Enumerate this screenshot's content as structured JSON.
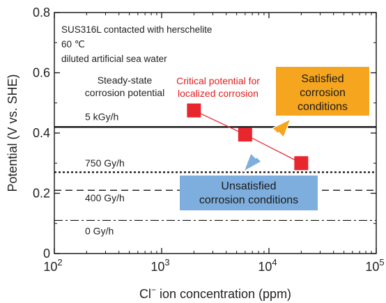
{
  "chart_data": {
    "type": "scatter",
    "xscale": "log",
    "xlim": [
      100,
      100000
    ],
    "ylim": [
      0,
      0.8
    ],
    "xticks": [
      {
        "value": 100,
        "base": "10",
        "exp": "2"
      },
      {
        "value": 1000,
        "base": "10",
        "exp": "3"
      },
      {
        "value": 10000,
        "base": "10",
        "exp": "4"
      },
      {
        "value": 100000,
        "base": "10",
        "exp": "5"
      }
    ],
    "yticks": [
      {
        "value": 0,
        "label": "0"
      },
      {
        "value": 0.2,
        "label": "0.2"
      },
      {
        "value": 0.4,
        "label": "0.4"
      },
      {
        "value": 0.6,
        "label": "0.6"
      },
      {
        "value": 0.8,
        "label": "0.8"
      }
    ],
    "xlabel_pre": "Cl",
    "xlabel_sup": "−",
    "xlabel_post": " ion concentration (ppm)",
    "ylabel": "Potential (V vs. SHE)",
    "info_lines": [
      "SUS316L contacted with herschelite",
      "60 ℃",
      "diluted artificial sea water"
    ],
    "steady_state_label": [
      "Steady-state",
      "corrosion potential"
    ],
    "critical_label": [
      "Critical potential for",
      "localized corrosion"
    ],
    "reference_lines": [
      {
        "label": "5 kGy/h",
        "y": 0.42,
        "style": "solid"
      },
      {
        "label": "750 Gy/h",
        "y": 0.27,
        "style": "dotted"
      },
      {
        "label": "400 Gy/h",
        "y": 0.21,
        "style": "dashed"
      },
      {
        "label": "0 Gy/h",
        "y": 0.11,
        "style": "dashdot"
      }
    ],
    "series": [
      {
        "x": [
          2000,
          6000,
          20000
        ],
        "y": [
          0.475,
          0.395,
          0.3
        ],
        "color": "#e8262d"
      }
    ],
    "satisfied_box": {
      "lines": [
        "Satisfied",
        "corrosion",
        "conditions"
      ],
      "color": "#f5a61e"
    },
    "unsatisfied_box": {
      "lines": [
        "Unsatisfied",
        "corrosion conditions"
      ],
      "color": "#7eaedd"
    }
  }
}
